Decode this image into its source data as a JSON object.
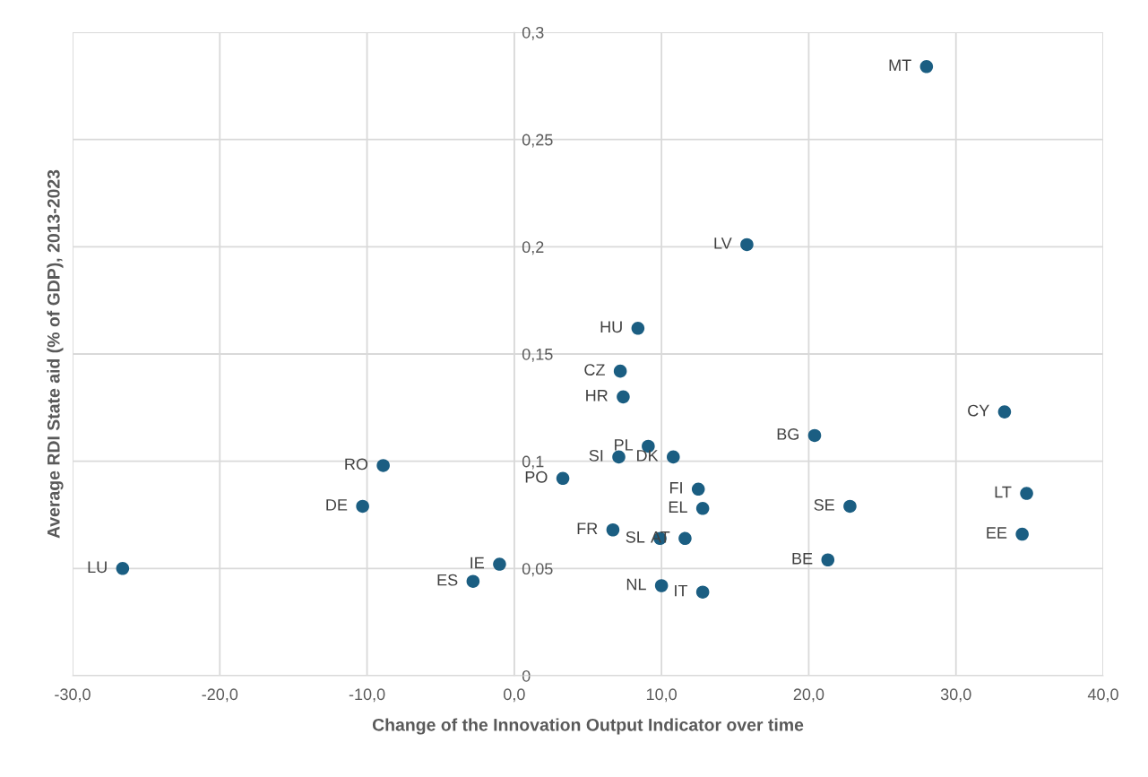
{
  "chart_data": {
    "type": "scatter",
    "xlabel": "Change of the Innovation Output Indicator over time",
    "ylabel": "Average RDI State aid (% of GDP), 2013-2023",
    "x": [
      28.0,
      15.8,
      8.4,
      7.2,
      7.4,
      33.3,
      20.4,
      9.1,
      7.1,
      10.8,
      -8.9,
      3.3,
      12.5,
      34.8,
      -10.3,
      12.8,
      22.8,
      6.7,
      34.5,
      9.9,
      11.6,
      21.3,
      -26.6,
      -1.0,
      -2.8,
      10.0,
      12.8
    ],
    "series": [
      {
        "color": "#1b5e82",
        "values": [
          0.284,
          0.201,
          0.162,
          0.142,
          0.13,
          0.123,
          0.112,
          0.107,
          0.102,
          0.102,
          0.098,
          0.092,
          0.087,
          0.085,
          0.079,
          0.078,
          0.079,
          0.068,
          0.066,
          0.064,
          0.064,
          0.054,
          0.05,
          0.052,
          0.044,
          0.042,
          0.039
        ]
      }
    ],
    "annotations": [
      {
        "text": "MT",
        "x": 28.0,
        "y": 0.284
      },
      {
        "text": "LV",
        "x": 15.8,
        "y": 0.201
      },
      {
        "text": "HU",
        "x": 8.4,
        "y": 0.162
      },
      {
        "text": "CZ",
        "x": 7.2,
        "y": 0.142
      },
      {
        "text": "HR",
        "x": 7.4,
        "y": 0.13
      },
      {
        "text": "CY",
        "x": 33.3,
        "y": 0.123
      },
      {
        "text": "BG",
        "x": 20.4,
        "y": 0.112
      },
      {
        "text": "PL",
        "x": 9.1,
        "y": 0.107
      },
      {
        "text": "SI",
        "x": 7.1,
        "y": 0.102
      },
      {
        "text": "DK",
        "x": 10.8,
        "y": 0.102
      },
      {
        "text": "RO",
        "x": -8.9,
        "y": 0.098
      },
      {
        "text": "PO",
        "x": 3.3,
        "y": 0.092
      },
      {
        "text": "FI",
        "x": 12.5,
        "y": 0.087
      },
      {
        "text": "LT",
        "x": 34.8,
        "y": 0.085
      },
      {
        "text": "DE",
        "x": -10.3,
        "y": 0.079
      },
      {
        "text": "EL",
        "x": 12.8,
        "y": 0.078
      },
      {
        "text": "SE",
        "x": 22.8,
        "y": 0.079
      },
      {
        "text": "FR",
        "x": 6.7,
        "y": 0.068
      },
      {
        "text": "EE",
        "x": 34.5,
        "y": 0.066
      },
      {
        "text": "SL",
        "x": 9.9,
        "y": 0.064
      },
      {
        "text": "AT",
        "x": 11.6,
        "y": 0.064
      },
      {
        "text": "BE",
        "x": 21.3,
        "y": 0.054
      },
      {
        "text": "LU",
        "x": -26.6,
        "y": 0.05
      },
      {
        "text": "IE",
        "x": -1.0,
        "y": 0.052
      },
      {
        "text": "ES",
        "x": -2.8,
        "y": 0.044
      },
      {
        "text": "NL",
        "x": 10.0,
        "y": 0.042
      },
      {
        "text": "IT",
        "x": 12.8,
        "y": 0.039
      }
    ],
    "xlim": [
      -30,
      40
    ],
    "ylim": [
      0,
      0.3
    ],
    "xticks": [
      {
        "value": -30,
        "label": "-30,0"
      },
      {
        "value": -20,
        "label": "-20,0"
      },
      {
        "value": -10,
        "label": "-10,0"
      },
      {
        "value": 0,
        "label": "0,0"
      },
      {
        "value": 10,
        "label": "10,0"
      },
      {
        "value": 20,
        "label": "20,0"
      },
      {
        "value": 30,
        "label": "30,0"
      },
      {
        "value": 40,
        "label": "40,0"
      }
    ],
    "yticks": [
      0,
      {
        "value": 0.05,
        "label": "0,05"
      },
      {
        "value": 0.1,
        "label": "0,1"
      },
      {
        "value": 0.15,
        "label": "0,15"
      },
      {
        "value": 0.2,
        "label": "0,2"
      },
      {
        "value": 0.25,
        "label": "0,25"
      },
      {
        "value": 0.3,
        "label": "0,3"
      }
    ],
    "grid": true,
    "marker": "circle",
    "legend": false
  }
}
